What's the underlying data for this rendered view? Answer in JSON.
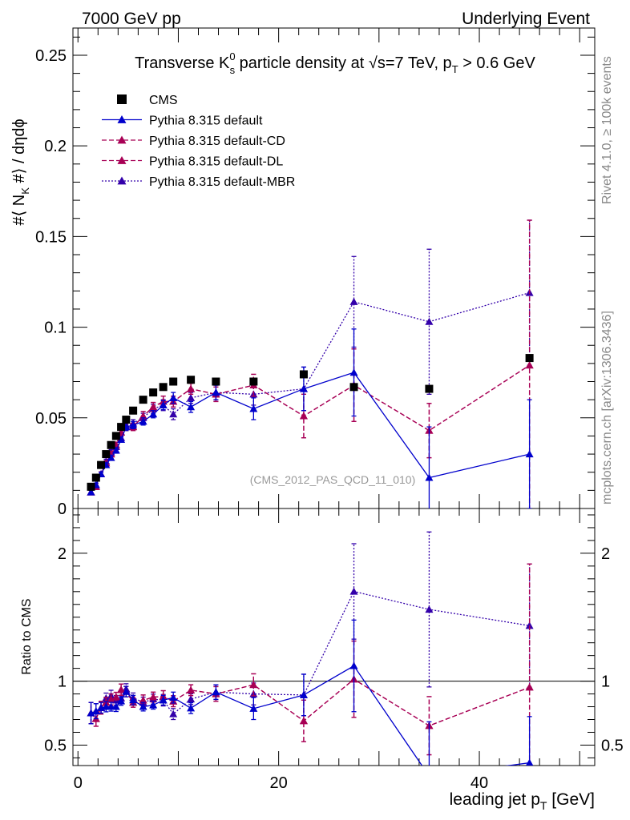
{
  "header": {
    "left": "7000 GeV pp",
    "right": "Underlying Event",
    "side_rivet": "Rivet 4.1.0, ≥ 100k events",
    "side_mcplots": "mcplots.cern.ch [arXiv:1306.3436]",
    "analysis_tag": "(CMS_2012_PAS_QCD_11_010)"
  },
  "title": {
    "part1": "Transverse K",
    "sup": "0",
    "sub": "s",
    "part2": " particle density at √s=7 TeV, p",
    "sub2": "T",
    "part3": " > 0.6 GeV"
  },
  "axes": {
    "ylabel_main": "#⟨ N",
    "ylabel_main_sub": "K",
    "ylabel_main_rest": " #⟩ / dηdϕ",
    "ylabel_ratio": "Ratio to CMS",
    "xlabel": "leading jet p",
    "xlabel_sub": "T",
    "xlabel_unit": " [GeV]"
  },
  "chart_data": {
    "type": "scatter",
    "x_range": [
      -0.5,
      51.5
    ],
    "y_range_main": [
      0,
      0.265
    ],
    "y_range_ratio": [
      0.34,
      2.35
    ],
    "x_ticks": [
      "0",
      "20",
      "40"
    ],
    "y_ticks_main": [
      "0",
      "0.05",
      "0.1",
      "0.15",
      "0.2",
      "0.25"
    ],
    "y_ticks_ratio": [
      "0.5",
      "1",
      "2"
    ],
    "legend": [
      "CMS",
      "Pythia 8.315 default",
      "Pythia 8.315 default-CD",
      "Pythia 8.315 default-DL",
      "Pythia 8.315 default-MBR"
    ],
    "x": [
      1.3,
      1.8,
      2.3,
      2.8,
      3.3,
      3.8,
      4.3,
      4.8,
      5.5,
      6.5,
      7.5,
      8.5,
      9.5,
      11.25,
      13.75,
      17.5,
      22.5,
      27.5,
      35,
      45
    ],
    "cms": [
      0.012,
      0.017,
      0.024,
      0.03,
      0.035,
      0.04,
      0.045,
      0.049,
      0.054,
      0.06,
      0.064,
      0.067,
      0.07,
      0.071,
      0.07,
      0.07,
      0.074,
      0.067,
      0.066,
      0.083
    ],
    "series": [
      {
        "name": "Pythia 8.315 default",
        "color": "#0000cc",
        "values": [
          0.009,
          0.013,
          0.019,
          0.024,
          0.028,
          0.032,
          0.038,
          0.045,
          0.046,
          0.048,
          0.052,
          0.057,
          0.061,
          0.056,
          0.064,
          0.055,
          0.066,
          0.075,
          0.017,
          0.03
        ],
        "err": [
          0.001,
          0.001,
          0.001,
          0.0012,
          0.0012,
          0.0015,
          0.0015,
          0.002,
          0.002,
          0.002,
          0.002,
          0.0025,
          0.003,
          0.003,
          0.004,
          0.006,
          0.012,
          0.024,
          0.028,
          0.03
        ]
      },
      {
        "name": "Pythia 8.315 default-CD",
        "color": "#a80055",
        "values": [
          0.009,
          0.012,
          0.019,
          0.025,
          0.03,
          0.035,
          0.042,
          0.045,
          0.045,
          0.051,
          0.056,
          0.059,
          0.059,
          0.066,
          0.063,
          0.068,
          0.051,
          0.068,
          0.043,
          0.079
        ],
        "err": [
          0.001,
          0.001,
          0.0012,
          0.0012,
          0.0015,
          0.0015,
          0.002,
          0.002,
          0.002,
          0.0025,
          0.0025,
          0.003,
          0.003,
          0.003,
          0.004,
          0.006,
          0.012,
          0.02,
          0.015,
          0.08
        ]
      },
      {
        "name": "Pythia 8.315 default-DL",
        "color": "#a80055",
        "values": [
          0.009,
          0.012,
          0.019,
          0.025,
          0.03,
          0.035,
          0.042,
          0.045,
          0.045,
          0.051,
          0.056,
          0.059,
          0.059,
          0.066,
          0.063,
          0.068,
          0.051,
          0.068,
          0.043,
          0.079
        ],
        "err": [
          0.001,
          0.001,
          0.0012,
          0.0012,
          0.0015,
          0.0015,
          0.002,
          0.002,
          0.002,
          0.0025,
          0.0025,
          0.003,
          0.003,
          0.003,
          0.004,
          0.006,
          0.012,
          0.02,
          0.015,
          0.08
        ]
      },
      {
        "name": "Pythia 8.315 default-MBR",
        "color": "#3300aa",
        "values": [
          0.009,
          0.013,
          0.019,
          0.026,
          0.031,
          0.034,
          0.039,
          0.046,
          0.047,
          0.05,
          0.055,
          0.057,
          0.052,
          0.061,
          0.064,
          0.063,
          0.066,
          0.114,
          0.103,
          0.119
        ],
        "err": [
          0.001,
          0.001,
          0.0012,
          0.0012,
          0.0015,
          0.0015,
          0.002,
          0.002,
          0.002,
          0.0025,
          0.0025,
          0.003,
          0.003,
          0.003,
          0.004,
          0.006,
          0.012,
          0.025,
          0.04,
          0.04
        ]
      }
    ]
  }
}
